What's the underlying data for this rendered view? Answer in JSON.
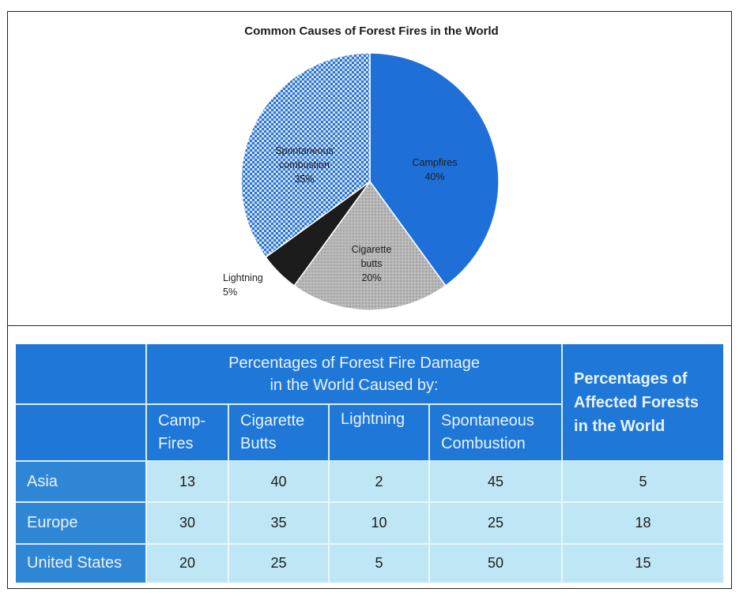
{
  "chart_data": [
    {
      "type": "pie",
      "title": "Common Causes of Forest Fires in the World",
      "slices": [
        {
          "label": "Campfires",
          "label_lines": [
            "Campfires",
            "40%"
          ],
          "value": 40,
          "color": "#1f6fd9",
          "pattern": "solid"
        },
        {
          "label": "Cigarette butts",
          "label_lines": [
            "Cigarette",
            "butts",
            "20%"
          ],
          "value": 20,
          "color": "#b3b3b3",
          "pattern": "dots"
        },
        {
          "label": "Lightning",
          "label_lines": [
            "Lightning",
            "5%"
          ],
          "value": 5,
          "color": "#1c1c1c",
          "pattern": "solid"
        },
        {
          "label": "Spontaneous combustion",
          "label_lines": [
            "Spontaneous",
            "combustion",
            "35%"
          ],
          "value": 35,
          "color": "#2d78d6",
          "pattern": "checker"
        }
      ]
    },
    {
      "type": "table",
      "group_header": [
        "Percentages of Forest Fire Damage",
        "in the World Caused by:"
      ],
      "side_header": [
        "Percentages of",
        "Affected Forests",
        "in the World"
      ],
      "columns": [
        [
          "Camp-",
          "Fires"
        ],
        [
          "Cigarette",
          "Butts"
        ],
        [
          "Lightning"
        ],
        [
          "Spontaneous",
          "Combustion"
        ]
      ],
      "rows": [
        {
          "label": "Asia",
          "values": [
            "13",
            "40",
            "2",
            "45"
          ],
          "affected": "5"
        },
        {
          "label": "Europe",
          "values": [
            "30",
            "35",
            "10",
            "25"
          ],
          "affected": "18"
        },
        {
          "label": "United States",
          "values": [
            "20",
            "25",
            "5",
            "50"
          ],
          "affected": "15"
        }
      ]
    }
  ]
}
